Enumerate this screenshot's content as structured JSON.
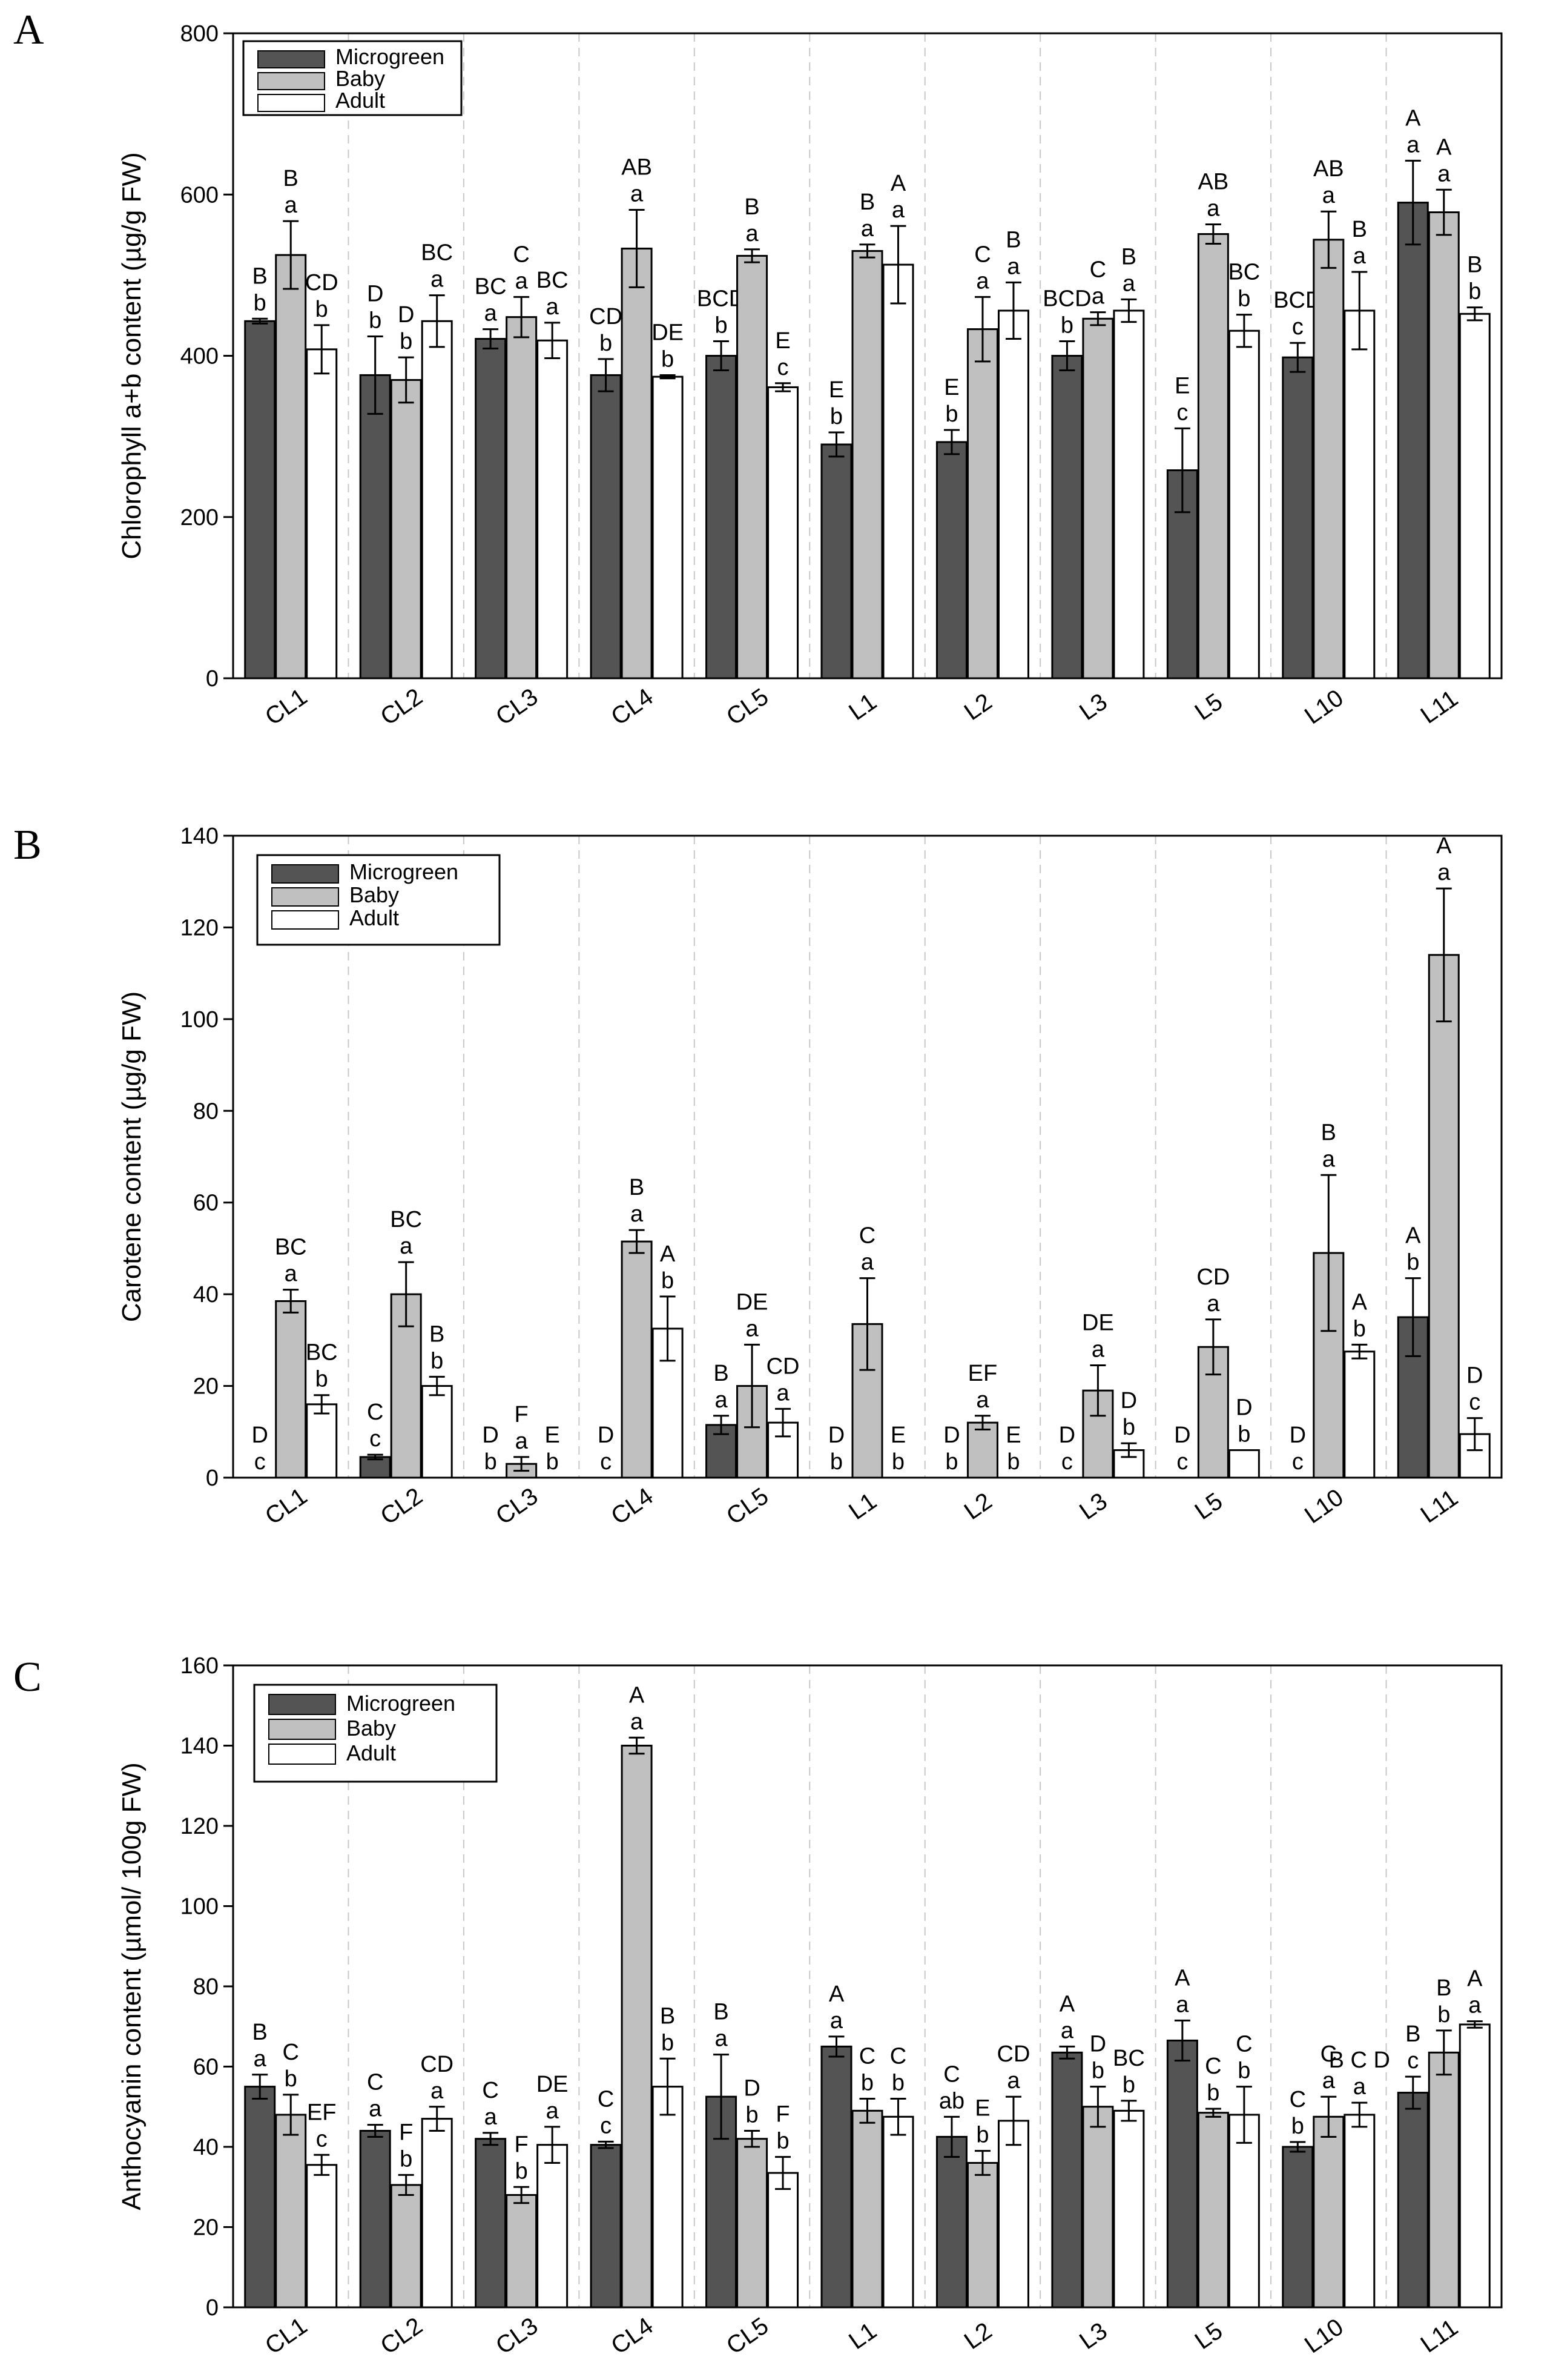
{
  "colors": {
    "microgreen": "#545454",
    "baby": "#c0c0c0",
    "adult": "#ffffff",
    "gridline": "#c8c8c8"
  },
  "chart_data": [
    {
      "type": "bar",
      "panel": "A",
      "ylabel": "Chlorophyll a+b content (µg/g FW)",
      "ylim": [
        0,
        800
      ],
      "yticks": [
        0,
        200,
        400,
        600,
        800
      ],
      "grid": false,
      "legend": {
        "position": "top-left",
        "entries": [
          "Microgreen",
          "Baby",
          "Adult"
        ]
      },
      "categories": [
        "CL1",
        "CL2",
        "CL3",
        "CL4",
        "CL5",
        "L1",
        "L2",
        "L3",
        "L5",
        "L10",
        "L11"
      ],
      "series": [
        {
          "name": "Microgreen",
          "values": [
            443,
            376,
            421,
            376,
            400,
            290,
            293,
            400,
            258,
            398,
            590
          ],
          "errors": [
            3,
            48,
            12,
            20,
            18,
            15,
            15,
            18,
            52,
            18,
            52
          ],
          "labels": [
            [
              "B",
              "b"
            ],
            [
              "D",
              "b"
            ],
            [
              "BC",
              "a"
            ],
            [
              "CD",
              "b"
            ],
            [
              "BCD",
              "b"
            ],
            [
              "E",
              "b"
            ],
            [
              "E",
              "b"
            ],
            [
              "BCD",
              "b"
            ],
            [
              "E",
              "c"
            ],
            [
              "BCD",
              "c"
            ],
            [
              "A",
              "a"
            ]
          ]
        },
        {
          "name": "Baby",
          "values": [
            525,
            370,
            448,
            533,
            524,
            530,
            433,
            446,
            551,
            544,
            578
          ],
          "errors": [
            42,
            28,
            25,
            48,
            8,
            8,
            40,
            8,
            12,
            35,
            28
          ],
          "labels": [
            [
              "B",
              "a"
            ],
            [
              "D",
              "b"
            ],
            [
              "C",
              "a"
            ],
            [
              "AB",
              "a"
            ],
            [
              "B",
              "a"
            ],
            [
              "B",
              "a"
            ],
            [
              "C",
              "a"
            ],
            [
              "C",
              "a"
            ],
            [
              "AB",
              "a"
            ],
            [
              "AB",
              "a"
            ],
            [
              "A",
              "a"
            ]
          ]
        },
        {
          "name": "Adult",
          "values": [
            408,
            443,
            419,
            374,
            361,
            513,
            456,
            456,
            431,
            456,
            452
          ],
          "errors": [
            30,
            32,
            22,
            2,
            5,
            48,
            35,
            14,
            20,
            48,
            8
          ],
          "labels": [
            [
              "CD",
              "b"
            ],
            [
              "BC",
              "a"
            ],
            [
              "BC",
              "a"
            ],
            [
              "DE",
              "b"
            ],
            [
              "E",
              "c"
            ],
            [
              "A",
              "a"
            ],
            [
              "B",
              "a"
            ],
            [
              "B",
              "a"
            ],
            [
              "BC",
              "b"
            ],
            [
              "B",
              "a"
            ],
            [
              "B",
              "b"
            ]
          ]
        }
      ]
    },
    {
      "type": "bar",
      "panel": "B",
      "ylabel": "Carotene content (µg/g FW)",
      "ylim": [
        0,
        140
      ],
      "yticks": [
        0,
        20,
        40,
        60,
        80,
        100,
        120,
        140
      ],
      "grid": false,
      "legend": {
        "position": "top-left",
        "entries": [
          "Microgreen",
          "Baby",
          "Adult"
        ]
      },
      "categories": [
        "CL1",
        "CL2",
        "CL3",
        "CL4",
        "CL5",
        "L1",
        "L2",
        "L3",
        "L5",
        "L10",
        "L11"
      ],
      "series": [
        {
          "name": "Microgreen",
          "values": [
            0,
            4.5,
            0,
            0,
            11.5,
            0,
            0,
            0,
            0,
            0,
            35
          ],
          "errors": [
            0,
            0.5,
            0,
            0,
            2,
            0,
            0,
            0,
            0,
            0,
            8.5
          ],
          "labels": [
            [
              "D",
              "c"
            ],
            [
              "C",
              "c"
            ],
            [
              "D",
              "b"
            ],
            [
              "D",
              "c"
            ],
            [
              "B",
              "a"
            ],
            [
              "D",
              "b"
            ],
            [
              "D",
              "b"
            ],
            [
              "D",
              "c"
            ],
            [
              "D",
              "c"
            ],
            [
              "D",
              "c"
            ],
            [
              "A",
              "b"
            ]
          ]
        },
        {
          "name": "Baby",
          "values": [
            38.5,
            40,
            3,
            51.5,
            20,
            33.5,
            12,
            19,
            28.5,
            49,
            114
          ],
          "errors": [
            2.5,
            7,
            1.5,
            2.5,
            9,
            10,
            1.5,
            5.5,
            6,
            17,
            14.5
          ],
          "labels": [
            [
              "BC",
              "a"
            ],
            [
              "BC",
              "a"
            ],
            [
              "F",
              "a"
            ],
            [
              "B",
              "a"
            ],
            [
              "DE",
              "a"
            ],
            [
              "C",
              "a"
            ],
            [
              "EF",
              "a"
            ],
            [
              "DE",
              "a"
            ],
            [
              "CD",
              "a"
            ],
            [
              "B",
              "a"
            ],
            [
              "A",
              "a"
            ]
          ]
        },
        {
          "name": "Adult",
          "values": [
            16,
            20,
            0,
            32.5,
            12,
            0,
            0,
            6,
            6,
            27.5,
            9.5
          ],
          "errors": [
            2,
            2,
            0,
            7,
            3,
            0,
            0,
            1.5,
            0,
            1.5,
            3.5
          ],
          "labels": [
            [
              "BC",
              "b"
            ],
            [
              "B",
              "b"
            ],
            [
              "E",
              "b"
            ],
            [
              "A",
              "b"
            ],
            [
              "CD",
              "a"
            ],
            [
              "E",
              "b"
            ],
            [
              "E",
              "b"
            ],
            [
              "D",
              "b"
            ],
            [
              "D",
              "b"
            ],
            [
              "A",
              "b"
            ],
            [
              "D",
              "c"
            ]
          ]
        }
      ]
    },
    {
      "type": "bar",
      "panel": "C",
      "ylabel": "Anthocyanin content (µmol/ 100g FW)",
      "ylim": [
        0,
        160
      ],
      "yticks": [
        0,
        20,
        40,
        60,
        80,
        100,
        120,
        140,
        160
      ],
      "grid": false,
      "legend": {
        "position": "top-left",
        "entries": [
          "Microgreen",
          "Baby",
          "Adult"
        ]
      },
      "categories": [
        "CL1",
        "CL2",
        "CL3",
        "CL4",
        "CL5",
        "L1",
        "L2",
        "L3",
        "L5",
        "L10",
        "L11"
      ],
      "series": [
        {
          "name": "Microgreen",
          "values": [
            55,
            44,
            42,
            40.5,
            52.5,
            65,
            42.5,
            63.5,
            66.5,
            40,
            53.5
          ],
          "errors": [
            3,
            1.5,
            1.5,
            0.8,
            10.5,
            2.5,
            5,
            1.5,
            5,
            1.2,
            4
          ],
          "labels": [
            [
              "B",
              "a"
            ],
            [
              "C",
              "a"
            ],
            [
              "C",
              "a"
            ],
            [
              "C",
              "c"
            ],
            [
              "B",
              "a"
            ],
            [
              "A",
              "a"
            ],
            [
              "C",
              "ab"
            ],
            [
              "A",
              "a"
            ],
            [
              "A",
              "a"
            ],
            [
              "C",
              "b"
            ],
            [
              "B",
              "c"
            ]
          ]
        },
        {
          "name": "Baby",
          "values": [
            48,
            30.5,
            28,
            140,
            42,
            49,
            36,
            50,
            48.5,
            47.5,
            63.5
          ],
          "errors": [
            5,
            2.5,
            2,
            2,
            2,
            3,
            3,
            5,
            1,
            5,
            5.5
          ],
          "labels": [
            [
              "C",
              "b"
            ],
            [
              "F",
              "b"
            ],
            [
              "F",
              "b"
            ],
            [
              "A",
              "a"
            ],
            [
              "D",
              "b"
            ],
            [
              "C",
              "b"
            ],
            [
              "E",
              "b"
            ],
            [
              "D",
              "b"
            ],
            [
              "C",
              "b"
            ],
            [
              "C",
              "a"
            ],
            [
              "B",
              "b"
            ]
          ]
        },
        {
          "name": "Adult",
          "values": [
            35.5,
            47,
            40.5,
            55,
            33.5,
            47.5,
            46.5,
            49,
            48,
            48,
            70.5
          ],
          "errors": [
            2.5,
            3,
            4.5,
            7,
            4,
            4.5,
            6,
            2.5,
            7,
            3,
            0.8
          ],
          "labels": [
            [
              "EF",
              "c"
            ],
            [
              "CD",
              "a"
            ],
            [
              "DE",
              "a"
            ],
            [
              "B",
              "b"
            ],
            [
              "F",
              "b"
            ],
            [
              "C",
              "b"
            ],
            [
              "CD",
              "a"
            ],
            [
              "BC",
              "b"
            ],
            [
              "C",
              "b"
            ],
            [
              "B C D",
              "a"
            ],
            [
              "A",
              "a"
            ]
          ]
        }
      ]
    }
  ]
}
